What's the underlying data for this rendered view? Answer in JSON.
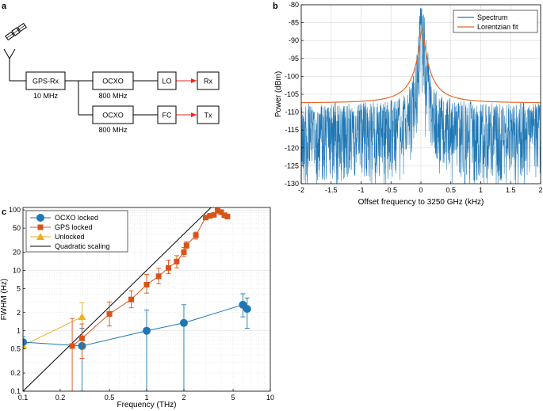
{
  "panels": {
    "a": {
      "label": "a",
      "blocks": {
        "gps_rx": "GPS-Rx",
        "ocxo_top": "OCXO",
        "ocxo_bottom": "OCXO",
        "lo": "LO",
        "fc": "FC",
        "rx": "Rx",
        "tx": "Tx"
      },
      "captions": {
        "gps_rx": "10 MHz",
        "ocxo_top": "800 MHz",
        "ocxo_bottom": "800 MHz"
      },
      "icons": [
        "satellite-icon",
        "antenna-icon"
      ],
      "colors": {
        "line": "#000000",
        "arrow": "#e8271c"
      }
    },
    "b": {
      "label": "b"
    },
    "c": {
      "label": "c"
    }
  },
  "chart_data": [
    {
      "panel": "b",
      "type": "line",
      "xlabel": "Offset frequency to 3250 GHz (kHz)",
      "ylabel": "Power (dBm)",
      "xlim": [
        -2,
        2
      ],
      "ylim": [
        -130,
        -80
      ],
      "xticks": [
        -2,
        -1.5,
        -1,
        -0.5,
        0,
        0.5,
        1,
        1.5,
        2
      ],
      "yticks": [
        -130,
        -125,
        -120,
        -115,
        -110,
        -105,
        -100,
        -95,
        -90,
        -85,
        -80
      ],
      "grid": true,
      "legend": "top-right",
      "series": [
        {
          "name": "Spectrum",
          "color": "#1f77b4",
          "style": "noisy",
          "noise_floor_dBm": -108,
          "noise_min_dBm": -130,
          "peak_dBm": -81,
          "peak_x": 0.02
        },
        {
          "name": "Lorentzian fit",
          "color": "#e06a2c",
          "style": "lorentzian",
          "baseline_dBm": -107.5,
          "peak_dBm": -87,
          "center": 0.02,
          "fwhm_kHz": 0.07
        }
      ]
    },
    {
      "panel": "c",
      "type": "scatter",
      "xlabel": "Frequency (THz)",
      "ylabel": "FWHM (Hz)",
      "xscale": "log",
      "yscale": "log",
      "xlim": [
        0.1,
        10
      ],
      "ylim": [
        0.1,
        110
      ],
      "xticks": [
        0.1,
        0.2,
        0.5,
        1,
        2,
        5,
        10
      ],
      "xtick_labels": [
        "0.1",
        "0.2",
        "0.5",
        "1",
        "2",
        "5",
        "10"
      ],
      "yticks": [
        0.1,
        0.2,
        0.5,
        1,
        2,
        5,
        10,
        20,
        50,
        100
      ],
      "ytick_labels": [
        "0.1",
        "0.2",
        "0.5",
        "1",
        "2",
        "5",
        "10",
        "20",
        "50",
        "100"
      ],
      "grid": true,
      "legend": "top-left",
      "series": [
        {
          "name": "OCXO locked",
          "color": "#1f77b4",
          "marker": "circle",
          "x": [
            0.1,
            0.3,
            1,
            2,
            6,
            6.5
          ],
          "y": [
            0.65,
            0.56,
            1.0,
            1.35,
            2.7,
            2.3
          ],
          "err_low": [
            0.1,
            0.1,
            0.1,
            0.1,
            1.7,
            1.1
          ],
          "err_high": [
            0.8,
            1.1,
            2.2,
            2.7,
            4.1,
            3.5
          ]
        },
        {
          "name": "GPS locked",
          "color": "#d95319",
          "marker": "square",
          "x": [
            0.25,
            0.3,
            0.5,
            0.75,
            1.0,
            1.25,
            1.5,
            1.75,
            2.0,
            2.1,
            2.5,
            3.0,
            3.25,
            3.5,
            3.75,
            4.0,
            4.25,
            4.5
          ],
          "y": [
            0.56,
            0.75,
            1.9,
            3.3,
            5.8,
            8.0,
            11,
            14,
            20,
            26,
            38,
            75,
            80,
            83,
            97,
            92,
            82,
            78
          ],
          "err_low": [
            0.1,
            0.35,
            1.2,
            2.4,
            4.2,
            6.0,
            8.8,
            11,
            17,
            23,
            33,
            72,
            78,
            80,
            92,
            88,
            78,
            75
          ],
          "err_high": [
            1.6,
            1.3,
            3.0,
            4.6,
            8.6,
            10.8,
            14.8,
            17.5,
            24,
            30,
            43,
            79,
            83,
            86,
            102,
            96,
            87,
            82
          ]
        },
        {
          "name": "Unlocked",
          "color": "#edb120",
          "marker": "triangle",
          "x": [
            0.1,
            0.3
          ],
          "y": [
            0.57,
            1.7
          ],
          "err_low": [
            0.1,
            0.8
          ],
          "err_high": [
            1.0,
            2.9
          ]
        },
        {
          "name": "Quadratic scaling",
          "color": "#000000",
          "marker": "none",
          "line_x": [
            0.1,
            4.6
          ],
          "line_y": [
            0.1,
            211.6
          ]
        }
      ]
    }
  ]
}
